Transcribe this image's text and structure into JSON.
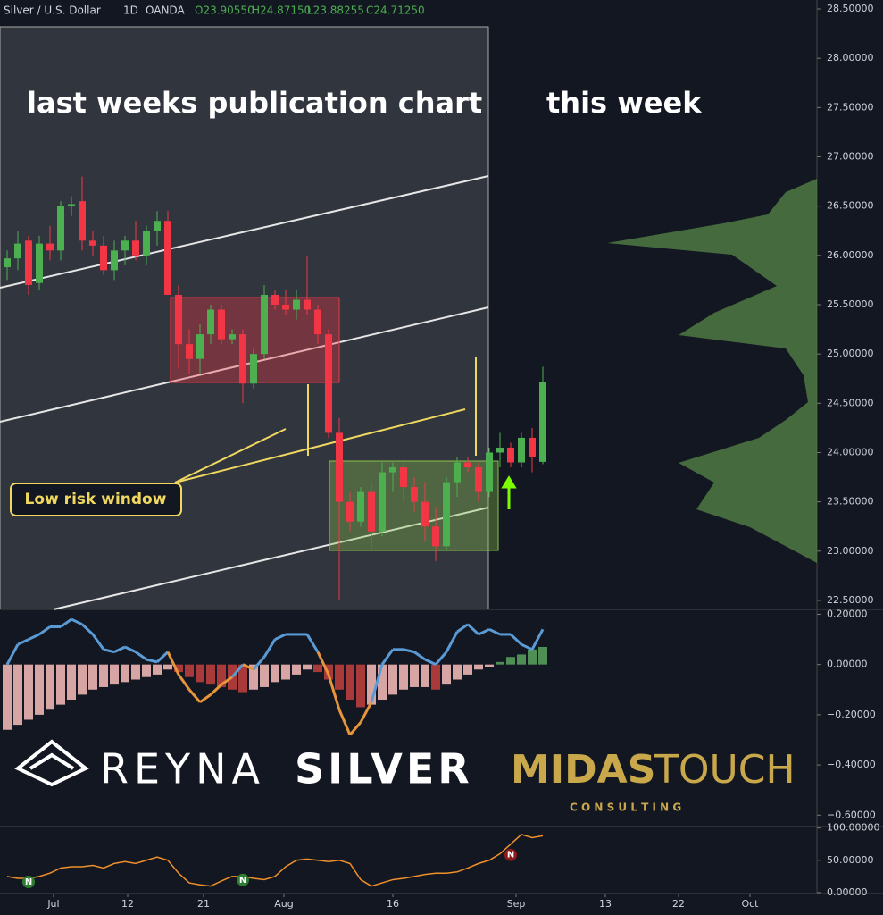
{
  "header": {
    "symbol": "Silver / U.S. Dollar",
    "interval": "1D",
    "source": "OANDA",
    "open": "O23.90550",
    "high": "H24.87150",
    "low": "L23.88255",
    "close": "C24.71250"
  },
  "annotations": {
    "left": "last weeks publication chart",
    "right": "this week",
    "window": "Low risk window"
  },
  "logo": {
    "reyna": "REYNA",
    "silver": "SILVER",
    "midas": "MIDAS",
    "touch": "TOUCH",
    "consulting": "C O N S U L T I N G"
  },
  "chart_data": [
    {
      "type": "candlestick",
      "xlim": [
        -0.667,
        75.583
      ],
      "ylim": [
        22.409,
        28.591
      ],
      "xticks": [
        {
          "value": 4.33,
          "label": "Jul"
        },
        {
          "value": 11.25,
          "label": "12"
        },
        {
          "value": 18.33,
          "label": "21"
        },
        {
          "value": 25.83,
          "label": "Aug"
        },
        {
          "value": 36,
          "label": "16"
        },
        {
          "value": 47.5,
          "label": "Sep"
        },
        {
          "value": 55.83,
          "label": "13"
        },
        {
          "value": 62.67,
          "label": "22"
        },
        {
          "value": 69.33,
          "label": "Oct"
        }
      ],
      "yticks": [
        {
          "value": 28.5,
          "label": "28.50000"
        },
        {
          "value": 28,
          "label": "28.00000"
        },
        {
          "value": 27.5,
          "label": "27.50000"
        },
        {
          "value": 27,
          "label": "27.00000"
        },
        {
          "value": 26.5,
          "label": "26.50000"
        },
        {
          "value": 26,
          "label": "26.00000"
        },
        {
          "value": 25.5,
          "label": "25.50000"
        },
        {
          "value": 25,
          "label": "25.00000"
        },
        {
          "value": 24.5,
          "label": "24.50000"
        },
        {
          "value": 24,
          "label": "24.00000"
        },
        {
          "value": 23.5,
          "label": "23.50000"
        },
        {
          "value": 23,
          "label": "23.00000"
        },
        {
          "value": 22.5,
          "label": "22.50000"
        }
      ],
      "up_color": "#4caf50",
      "down_color": "#f23645",
      "ohlc": [
        [
          25.88,
          26.05,
          25.75,
          25.97
        ],
        [
          25.97,
          26.25,
          25.85,
          26.12
        ],
        [
          26.15,
          26.2,
          25.6,
          25.7
        ],
        [
          25.72,
          26.2,
          25.65,
          26.12
        ],
        [
          26.12,
          26.3,
          25.95,
          26.05
        ],
        [
          26.05,
          26.55,
          25.95,
          26.5
        ],
        [
          26.5,
          26.6,
          26.4,
          26.52
        ],
        [
          26.55,
          26.8,
          26.05,
          26.15
        ],
        [
          26.15,
          26.25,
          26.0,
          26.1
        ],
        [
          26.1,
          26.2,
          25.8,
          25.85
        ],
        [
          25.85,
          26.15,
          25.75,
          26.05
        ],
        [
          26.05,
          26.2,
          25.9,
          26.15
        ],
        [
          26.15,
          26.35,
          25.95,
          26.0
        ],
        [
          26.0,
          26.3,
          25.9,
          26.25
        ],
        [
          26.25,
          26.45,
          26.1,
          26.35
        ],
        [
          26.35,
          26.45,
          25.6,
          25.6
        ],
        [
          25.6,
          25.7,
          24.85,
          25.1
        ],
        [
          25.1,
          25.25,
          24.8,
          24.95
        ],
        [
          24.95,
          25.3,
          24.8,
          25.2
        ],
        [
          25.2,
          25.5,
          25.1,
          25.45
        ],
        [
          25.45,
          25.5,
          25.1,
          25.15
        ],
        [
          25.15,
          25.25,
          25.1,
          25.2
        ],
        [
          25.2,
          25.25,
          24.5,
          24.7
        ],
        [
          24.7,
          25.05,
          24.65,
          25.0
        ],
        [
          25.0,
          25.7,
          24.95,
          25.6
        ],
        [
          25.6,
          25.65,
          25.45,
          25.5
        ],
        [
          25.5,
          25.65,
          25.4,
          25.45
        ],
        [
          25.45,
          25.65,
          25.35,
          25.55
        ],
        [
          25.55,
          26.0,
          25.4,
          25.45
        ],
        [
          25.45,
          25.5,
          25.1,
          25.2
        ],
        [
          25.2,
          25.25,
          24.15,
          24.2
        ],
        [
          24.2,
          24.35,
          22.5,
          23.5
        ],
        [
          23.5,
          23.6,
          23.2,
          23.3
        ],
        [
          23.3,
          23.65,
          23.25,
          23.6
        ],
        [
          23.6,
          23.7,
          23.0,
          23.2
        ],
        [
          23.2,
          23.9,
          23.15,
          23.8
        ],
        [
          23.8,
          23.9,
          23.6,
          23.85
        ],
        [
          23.85,
          23.9,
          23.5,
          23.65
        ],
        [
          23.65,
          23.75,
          23.4,
          23.5
        ],
        [
          23.5,
          23.7,
          23.1,
          23.25
        ],
        [
          23.25,
          23.45,
          22.9,
          23.05
        ],
        [
          23.05,
          23.75,
          23.0,
          23.7
        ],
        [
          23.7,
          23.95,
          23.55,
          23.9
        ],
        [
          23.9,
          23.95,
          23.8,
          23.85
        ],
        [
          23.85,
          23.9,
          23.5,
          23.6
        ],
        [
          23.6,
          24.05,
          23.55,
          24.0
        ],
        [
          24.0,
          24.2,
          23.85,
          24.05
        ],
        [
          24.05,
          24.1,
          23.85,
          23.9
        ],
        [
          23.9,
          24.2,
          23.85,
          24.15
        ],
        [
          24.15,
          24.25,
          23.8,
          23.95
        ],
        [
          23.9055,
          24.8715,
          23.88255,
          24.7125
        ]
      ]
    },
    {
      "type": "macd",
      "ylim": [
        -0.6452,
        0.2194
      ],
      "yticks": [
        {
          "value": 0.2,
          "label": "0.20000"
        },
        {
          "value": 0,
          "label": "0.00000"
        },
        {
          "value": -0.2,
          "label": "−0.20000"
        },
        {
          "value": -0.4,
          "label": "−0.40000"
        },
        {
          "value": -0.6,
          "label": "−0.60000"
        }
      ],
      "histogram": [
        -0.26,
        -0.24,
        -0.22,
        -0.2,
        -0.18,
        -0.16,
        -0.14,
        -0.12,
        -0.1,
        -0.09,
        -0.08,
        -0.07,
        -0.06,
        -0.05,
        -0.04,
        -0.02,
        -0.03,
        -0.05,
        -0.07,
        -0.08,
        -0.09,
        -0.1,
        -0.11,
        -0.1,
        -0.09,
        -0.07,
        -0.06,
        -0.04,
        -0.02,
        -0.03,
        -0.06,
        -0.1,
        -0.14,
        -0.17,
        -0.16,
        -0.14,
        -0.12,
        -0.1,
        -0.09,
        -0.09,
        -0.1,
        -0.08,
        -0.06,
        -0.04,
        -0.02,
        -0.01,
        0.01,
        0.03,
        0.04,
        0.06,
        0.07
      ],
      "line": [
        0.0,
        0.08,
        0.1,
        0.12,
        0.15,
        0.15,
        0.18,
        0.16,
        0.12,
        0.06,
        0.05,
        0.07,
        0.05,
        0.02,
        0.01,
        0.05,
        -0.04,
        -0.1,
        -0.15,
        -0.12,
        -0.08,
        -0.05,
        0.0,
        -0.02,
        0.03,
        0.1,
        0.12,
        0.12,
        0.12,
        0.05,
        -0.04,
        -0.18,
        -0.28,
        -0.23,
        -0.15,
        0.0,
        0.06,
        0.06,
        0.05,
        0.02,
        0.0,
        0.05,
        0.13,
        0.16,
        0.12,
        0.14,
        0.12,
        0.12,
        0.08,
        0.06,
        0.14
      ]
    },
    {
      "type": "oscillator",
      "ylim": [
        -1.54,
        102.31
      ],
      "yticks": [
        {
          "value": 100,
          "label": "100.00000"
        },
        {
          "value": 50,
          "label": "50.00000"
        },
        {
          "value": 0,
          "label": "0.00000"
        }
      ],
      "values": [
        25,
        22,
        22,
        25,
        30,
        38,
        40,
        40,
        42,
        38,
        45,
        48,
        45,
        50,
        55,
        50,
        30,
        15,
        12,
        10,
        18,
        25,
        25,
        22,
        20,
        25,
        40,
        50,
        52,
        50,
        48,
        50,
        45,
        20,
        10,
        15,
        20,
        22,
        25,
        28,
        30,
        30,
        32,
        38,
        45,
        50,
        60,
        75,
        90,
        85,
        88
      ],
      "markers": [
        {
          "index": 2,
          "label": "N"
        },
        {
          "index": 22,
          "label": "N"
        },
        {
          "index": 47,
          "label": "N"
        }
      ]
    }
  ]
}
